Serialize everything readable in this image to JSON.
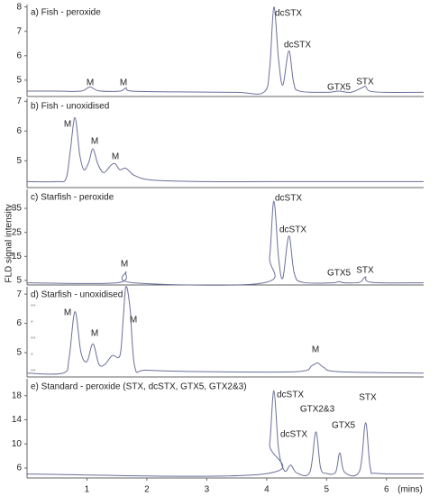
{
  "chart_data": [
    {
      "type": "line",
      "title": "a) Fish - peroxide",
      "color": "#6b6f9a",
      "xlim": [
        0,
        6.62
      ],
      "ylim": [
        4.33,
        8.1
      ],
      "yticks": [
        5,
        6,
        7,
        8
      ],
      "x": [
        0,
        0.5,
        0.9,
        1.05,
        1.2,
        1.55,
        1.65,
        1.75,
        2.5,
        3.5,
        3.95,
        4.05,
        4.12,
        4.2,
        4.27,
        4.37,
        4.45,
        4.55,
        5.0,
        5.2,
        5.4,
        5.6,
        5.65,
        5.72,
        6.0,
        6.62
      ],
      "values": [
        4.55,
        4.55,
        4.55,
        4.72,
        4.56,
        4.55,
        4.68,
        4.55,
        4.52,
        4.5,
        4.5,
        5.5,
        8.0,
        5.8,
        4.8,
        6.2,
        4.9,
        4.55,
        4.5,
        4.55,
        4.5,
        4.7,
        4.75,
        4.55,
        4.5,
        4.5
      ],
      "annotations": [
        "M",
        "M",
        "dcSTX",
        "dcSTX",
        "GTX5",
        "STX"
      ]
    },
    {
      "type": "line",
      "title": "b) Fish - unoxidised",
      "color": "#6b6f9a",
      "xlim": [
        0,
        6.62
      ],
      "ylim": [
        4.1,
        7.1
      ],
      "yticks": [
        5,
        6,
        7
      ],
      "x": [
        0,
        0.5,
        0.65,
        0.72,
        0.8,
        0.88,
        0.95,
        1.03,
        1.1,
        1.18,
        1.28,
        1.4,
        1.47,
        1.55,
        1.65,
        1.8,
        2.1,
        3,
        4,
        5,
        6.62
      ],
      "values": [
        4.3,
        4.3,
        4.4,
        5.3,
        6.45,
        5.2,
        4.7,
        4.95,
        5.4,
        4.9,
        4.6,
        4.85,
        4.9,
        4.7,
        4.75,
        4.5,
        4.35,
        4.3,
        4.3,
        4.3,
        4.3
      ],
      "annotations": [
        "M",
        "M",
        "M"
      ]
    },
    {
      "type": "line",
      "title": "c) Starfish - peroxide",
      "color": "#6b6f9a",
      "ylabel": "FLD signal intensity",
      "xlim": [
        0,
        6.62
      ],
      "ylim": [
        3.1,
        42.9
      ],
      "yticks": [
        5,
        15,
        25,
        35
      ],
      "x": [
        0,
        1.5,
        1.65,
        1.78,
        3.95,
        4.05,
        4.12,
        4.2,
        4.27,
        4.37,
        4.46,
        4.6,
        5.1,
        5.2,
        5.3,
        5.55,
        5.65,
        5.75,
        6.62
      ],
      "values": [
        4,
        4,
        8.5,
        4,
        4,
        15,
        38,
        14,
        6,
        23.5,
        8,
        4.2,
        4,
        4.5,
        4,
        4.2,
        6.5,
        4.2,
        4
      ],
      "annotations": [
        "M",
        "dcSTX",
        "dcSTX",
        "GTX5",
        "STX"
      ]
    },
    {
      "type": "line",
      "title": "d) Starfish - unoxidised",
      "color": "#6b6f9a",
      "xlim": [
        0,
        6.62
      ],
      "ylim": [
        4.17,
        7.25
      ],
      "yticks": [
        5,
        6,
        7
      ],
      "x": [
        0,
        0.6,
        0.7,
        0.8,
        0.9,
        1.0,
        1.1,
        1.2,
        1.3,
        1.42,
        1.55,
        1.6,
        1.65,
        1.72,
        1.8,
        2.0,
        3,
        4.5,
        4.75,
        4.85,
        4.95,
        5.2,
        6.62
      ],
      "values": [
        4.3,
        4.3,
        4.8,
        6.4,
        5.0,
        4.7,
        5.3,
        4.6,
        4.6,
        4.9,
        4.9,
        6.0,
        7.25,
        6.5,
        4.5,
        4.4,
        4.35,
        4.35,
        4.55,
        4.65,
        4.5,
        4.35,
        4.3
      ],
      "annotations": [
        "M",
        "M",
        "M",
        "M"
      ],
      "side_marks": [
        "**",
        "*",
        "**",
        "*",
        "**"
      ]
    },
    {
      "type": "line",
      "title": "e) Standard - peroxide (STX, dcSTX, GTX5, GTX2&3)",
      "color": "#6b6f9a",
      "xlabel": "(mins)",
      "xlim": [
        0,
        6.62
      ],
      "ylim": [
        4.35,
        20.8
      ],
      "yticks": [
        6,
        10,
        14,
        18
      ],
      "xticks": [
        1,
        2,
        3,
        4,
        5,
        6
      ],
      "x": [
        0,
        3.95,
        4.05,
        4.12,
        4.2,
        4.3,
        4.4,
        4.5,
        4.72,
        4.82,
        4.9,
        5.0,
        5.15,
        5.22,
        5.3,
        5.55,
        5.65,
        5.73,
        5.85,
        6.62
      ],
      "values": [
        5,
        5,
        10,
        18.8,
        9,
        5.5,
        6.5,
        5.2,
        5.3,
        12,
        6,
        5.1,
        5.3,
        8.5,
        5.3,
        5.5,
        13.5,
        6,
        5.1,
        5
      ],
      "annotations": [
        "dcSTX",
        "dcSTX",
        "GTX2&3",
        "GTX5",
        "STX"
      ]
    }
  ]
}
